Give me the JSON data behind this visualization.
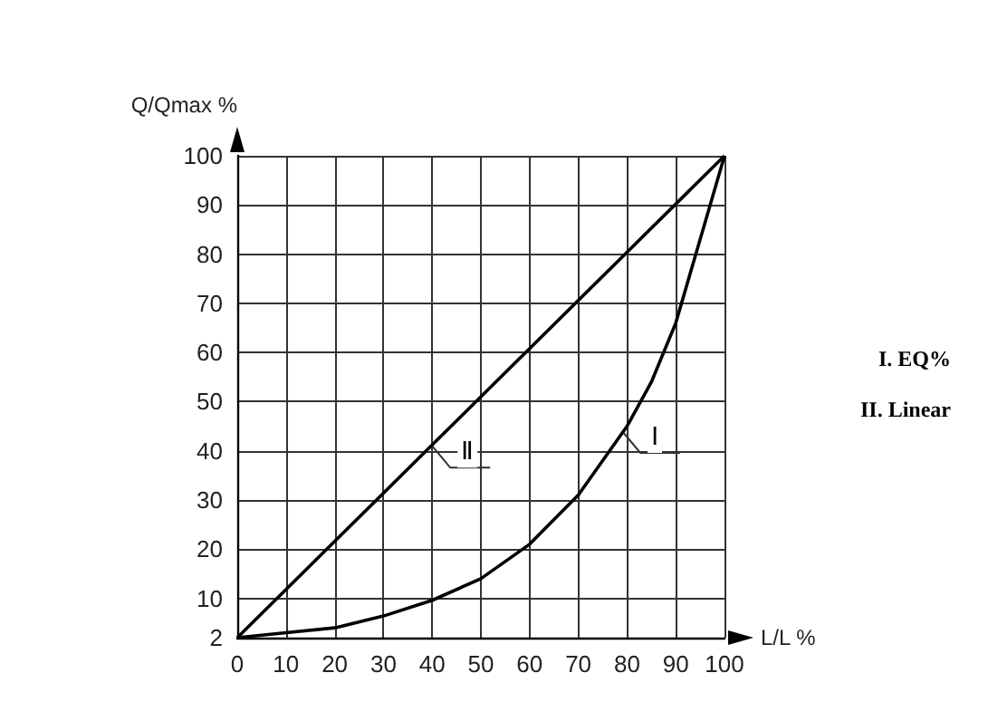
{
  "chart_data": {
    "type": "line",
    "xlabel": "L/L %",
    "ylabel": "Q/Qmax %",
    "series": [
      {
        "color": "#000000",
        "x": [
          0,
          10,
          20,
          30,
          40,
          50,
          60,
          70,
          75,
          80,
          85,
          90,
          95,
          100
        ],
        "values": [
          2,
          3,
          4,
          6.4,
          9.6,
          14,
          21,
          31,
          38,
          45,
          54,
          66,
          83,
          100
        ]
      },
      {
        "color": "#000000",
        "x": [
          0,
          100
        ],
        "values": [
          2,
          100
        ]
      }
    ],
    "xlim": [
      0,
      100
    ],
    "xticks": [
      0,
      10,
      20,
      30,
      40,
      50,
      60,
      70,
      80,
      90,
      100
    ],
    "ylim": [
      2,
      100
    ],
    "yticks": [
      2,
      10,
      20,
      30,
      40,
      50,
      60,
      70,
      80,
      90,
      100
    ],
    "grid": true,
    "marker": "none",
    "line_style": "solid",
    "annotations": [
      {
        "text": "Ⅱ",
        "x": 40,
        "y": 41
      },
      {
        "text": "Ⅰ",
        "x": 79,
        "y": 44
      },
      "I. EQ%",
      "II. Linear"
    ]
  }
}
